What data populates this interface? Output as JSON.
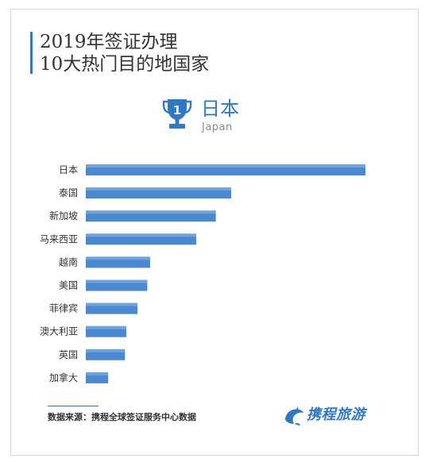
{
  "title": {
    "line1": "2019年签证办理",
    "line2": "10大热门目的地国家"
  },
  "winner": {
    "rank": "1",
    "name": "日本",
    "name_en": "Japan"
  },
  "chart_data": {
    "type": "bar",
    "orientation": "horizontal",
    "categories": [
      "日本",
      "泰国",
      "新加坡",
      "马来西亚",
      "越南",
      "美国",
      "菲律宾",
      "澳大利亚",
      "英国",
      "加拿大"
    ],
    "values": [
      100,
      52,
      46.5,
      39.5,
      23,
      22,
      18.5,
      14.5,
      14,
      8
    ],
    "title": "",
    "xlabel": "",
    "ylabel": "",
    "xlim": [
      0,
      100
    ],
    "grid": false,
    "legend": "none",
    "bar_color": "#4a89cf"
  },
  "footer": {
    "source": "数据来源：携程全球签证服务中心数据",
    "brand": "携程旅游"
  },
  "colors": {
    "accent": "#2f78c4",
    "bar": "#4a89cf"
  }
}
